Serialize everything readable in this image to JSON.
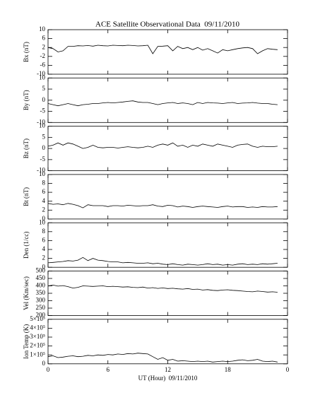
{
  "chart_data": [
    {
      "type": "line",
      "title": "ACE Satellite Observational Data  09/11/2010",
      "ylabel": "Bx (nT)",
      "color": "#000000",
      "x": [
        0,
        0.5,
        1,
        1.5,
        2,
        2.5,
        3,
        3.5,
        4,
        4.5,
        5,
        5.5,
        6,
        6.5,
        7,
        7.5,
        8,
        8.5,
        9,
        9.5,
        10,
        10.5,
        11,
        11.5,
        12,
        12.5,
        13,
        13.5,
        14,
        14.5,
        15,
        15.5,
        16,
        16.5,
        17,
        17.5,
        18,
        18.5,
        19,
        19.5,
        20,
        20.5,
        21,
        21.5,
        22,
        22.5,
        23
      ],
      "values": [
        2,
        1.5,
        0,
        0.5,
        2.5,
        2.5,
        2.8,
        2.7,
        2.9,
        2.6,
        3,
        2.8,
        2.7,
        3,
        2.9,
        2.8,
        3,
        2.9,
        2.7,
        2.8,
        3,
        -0.8,
        2.5,
        2.6,
        2.8,
        0.5,
        2.5,
        1.5,
        2,
        1,
        2,
        0.8,
        1.5,
        0.5,
        -0.5,
        1,
        0.5,
        1,
        1.5,
        1.8,
        2,
        1.5,
        -0.8,
        0.5,
        1.5,
        1.2,
        1
      ],
      "xlim": [
        0,
        24
      ],
      "ylim": [
        -10,
        10
      ],
      "yticks": [
        -10,
        -6,
        -2,
        2,
        6,
        10
      ]
    },
    {
      "type": "line",
      "ylabel": "By (nT)",
      "color": "#000000",
      "x": [
        0,
        0.5,
        1,
        1.5,
        2,
        2.5,
        3,
        3.5,
        4,
        4.5,
        5,
        5.5,
        6,
        6.5,
        7,
        7.5,
        8,
        8.5,
        9,
        9.5,
        10,
        10.5,
        11,
        11.5,
        12,
        12.5,
        13,
        13.5,
        14,
        14.5,
        15,
        15.5,
        16,
        16.5,
        17,
        17.5,
        18,
        18.5,
        19,
        19.5,
        20,
        20.5,
        21,
        21.5,
        22,
        22.5,
        23
      ],
      "values": [
        -1.5,
        -2,
        -2.5,
        -2,
        -1.5,
        -2,
        -2.5,
        -2,
        -1.8,
        -1.5,
        -1.5,
        -1.2,
        -1,
        -1.2,
        -1,
        -0.8,
        -0.5,
        -0.3,
        -0.8,
        -1,
        -1,
        -1.5,
        -2,
        -1.5,
        -1.2,
        -1,
        -1.5,
        -1.2,
        -1.5,
        -2,
        -1,
        -1.5,
        -1,
        -1.2,
        -1.3,
        -1.5,
        -1.2,
        -1,
        -1.5,
        -1.3,
        -1.2,
        -1,
        -1.3,
        -1.5,
        -1.5,
        -1.8,
        -2
      ],
      "xlim": [
        0,
        24
      ],
      "ylim": [
        -10,
        10
      ],
      "yticks": [
        -10,
        -5,
        0,
        5,
        10
      ]
    },
    {
      "type": "line",
      "ylabel": "Bz (nT)",
      "color": "#000000",
      "x": [
        0,
        0.5,
        1,
        1.5,
        2,
        2.5,
        3,
        3.5,
        4,
        4.5,
        5,
        5.5,
        6,
        6.5,
        7,
        7.5,
        8,
        8.5,
        9,
        9.5,
        10,
        10.5,
        11,
        11.5,
        12,
        12.5,
        13,
        13.5,
        14,
        14.5,
        15,
        15.5,
        16,
        16.5,
        17,
        17.5,
        18,
        18.5,
        19,
        19.5,
        20,
        20.5,
        21,
        21.5,
        22,
        22.5,
        23
      ],
      "values": [
        1,
        1.5,
        2.5,
        1.5,
        2.5,
        2,
        1,
        0,
        0.5,
        1.5,
        0.5,
        0.3,
        0.5,
        0.5,
        0.2,
        0.5,
        0.8,
        0.5,
        0.3,
        0.5,
        1,
        0.5,
        1.5,
        2,
        1.5,
        2.5,
        1,
        1.5,
        0.5,
        1.5,
        1,
        2,
        1.5,
        1,
        2,
        1.5,
        1,
        0.5,
        1.5,
        1.8,
        2,
        1,
        0.5,
        1,
        0.8,
        0.8,
        1
      ],
      "xlim": [
        0,
        24
      ],
      "ylim": [
        -10,
        10
      ],
      "yticks": [
        -10,
        -5,
        0,
        5,
        10
      ]
    },
    {
      "type": "line",
      "ylabel": "Bt (nT)",
      "color": "#000000",
      "x": [
        0,
        0.5,
        1,
        1.5,
        2,
        2.5,
        3,
        3.5,
        4,
        4.5,
        5,
        5.5,
        6,
        6.5,
        7,
        7.5,
        8,
        8.5,
        9,
        9.5,
        10,
        10.5,
        11,
        11.5,
        12,
        12.5,
        13,
        13.5,
        14,
        14.5,
        15,
        15.5,
        16,
        16.5,
        17,
        17.5,
        18,
        18.5,
        19,
        19.5,
        20,
        20.5,
        21,
        21.5,
        22,
        22.5,
        23
      ],
      "values": [
        3.5,
        3.3,
        3.4,
        3.2,
        3.5,
        3.3,
        3,
        2.5,
        3.2,
        3,
        3,
        3,
        2.8,
        3,
        3,
        2.9,
        3.1,
        3,
        2.9,
        3,
        3,
        3.2,
        2.9,
        2.8,
        3.1,
        3,
        2.7,
        2.9,
        2.8,
        2.6,
        2.8,
        2.9,
        2.8,
        2.7,
        2.6,
        2.8,
        2.9,
        2.7,
        2.8,
        2.8,
        2.6,
        2.7,
        2.6,
        2.8,
        2.7,
        2.7,
        2.8
      ],
      "xlim": [
        0,
        24
      ],
      "ylim": [
        0,
        10
      ],
      "yticks": [
        0,
        2,
        4,
        6,
        8,
        10
      ]
    },
    {
      "type": "line",
      "ylabel": "Den (1/cc)",
      "color": "#000000",
      "x": [
        0,
        0.5,
        1,
        1.5,
        2,
        2.5,
        3,
        3.5,
        4,
        4.5,
        5,
        5.5,
        6,
        6.5,
        7,
        7.5,
        8,
        8.5,
        9,
        9.5,
        10,
        10.5,
        11,
        11.5,
        12,
        12.5,
        13,
        13.5,
        14,
        14.5,
        15,
        15.5,
        16,
        16.5,
        17,
        17.5,
        18,
        18.5,
        19,
        19.5,
        20,
        20.5,
        21,
        21.5,
        22,
        22.5,
        23
      ],
      "values": [
        1,
        1.1,
        1.2,
        1.3,
        1.5,
        1.4,
        1.6,
        2.2,
        1.5,
        2,
        1.6,
        1.5,
        1.3,
        1.2,
        1.2,
        1,
        1.1,
        1,
        0.9,
        0.9,
        1,
        0.8,
        0.9,
        0.7,
        0.6,
        0.8,
        0.6,
        0.5,
        0.7,
        0.6,
        0.5,
        0.6,
        0.8,
        0.6,
        0.7,
        0.5,
        0.6,
        0.5,
        0.7,
        0.8,
        0.6,
        0.7,
        0.6,
        0.8,
        0.7,
        0.8,
        0.9
      ],
      "xlim": [
        0,
        24
      ],
      "ylim": [
        0,
        10
      ],
      "yticks": [
        0,
        2,
        4,
        6,
        8,
        10
      ]
    },
    {
      "type": "line",
      "ylabel": "Vel (Km/sec)",
      "color": "#000000",
      "x": [
        0,
        0.5,
        1,
        1.5,
        2,
        2.5,
        3,
        3.5,
        4,
        4.5,
        5,
        5.5,
        6,
        6.5,
        7,
        7.5,
        8,
        8.5,
        9,
        9.5,
        10,
        10.5,
        11,
        11.5,
        12,
        12.5,
        13,
        13.5,
        14,
        14.5,
        15,
        15.5,
        16,
        16.5,
        17,
        17.5,
        18,
        18.5,
        19,
        19.5,
        20,
        20.5,
        21,
        21.5,
        22,
        22.5,
        23
      ],
      "values": [
        400,
        405,
        398,
        402,
        395,
        385,
        390,
        400,
        398,
        396,
        398,
        400,
        395,
        397,
        395,
        392,
        394,
        390,
        388,
        392,
        385,
        388,
        383,
        386,
        382,
        384,
        380,
        378,
        382,
        376,
        378,
        372,
        375,
        370,
        368,
        372,
        374,
        370,
        368,
        365,
        362,
        360,
        365,
        362,
        358,
        360,
        357
      ],
      "xlim": [
        0,
        24
      ],
      "ylim": [
        200,
        500
      ],
      "yticks": [
        200,
        250,
        300,
        350,
        400,
        450,
        500
      ]
    },
    {
      "type": "line",
      "ylabel": "Ion Temp (K)",
      "xlabel": "UT (Hour)  09/11/2010",
      "color": "#000000",
      "x": [
        0,
        0.5,
        1,
        1.5,
        2,
        2.5,
        3,
        3.5,
        4,
        4.5,
        5,
        5.5,
        6,
        6.5,
        7,
        7.5,
        8,
        8.5,
        9,
        9.5,
        10,
        10.5,
        11,
        11.5,
        12,
        12.5,
        13,
        13.5,
        14,
        14.5,
        15,
        15.5,
        16,
        16.5,
        17,
        17.5,
        18,
        18.5,
        19,
        19.5,
        20,
        20.5,
        21,
        21.5,
        22,
        22.5,
        23
      ],
      "values": [
        80000,
        90000,
        70000,
        75000,
        85000,
        90000,
        80000,
        85000,
        95000,
        90000,
        100000,
        95000,
        105000,
        100000,
        110000,
        105000,
        115000,
        110000,
        120000,
        115000,
        110000,
        80000,
        50000,
        70000,
        40000,
        50000,
        30000,
        35000,
        30000,
        25000,
        30000,
        25000,
        30000,
        20000,
        25000,
        30000,
        25000,
        30000,
        40000,
        45000,
        35000,
        40000,
        50000,
        30000,
        25000,
        30000,
        20000
      ],
      "xlim": [
        0,
        24
      ],
      "xticks": [
        0,
        6,
        12,
        18,
        {
          "value": 24,
          "label": "0"
        }
      ],
      "ylim": [
        0,
        500000
      ],
      "yticks": [
        0,
        {
          "value": 100000,
          "label": "1×10⁵"
        },
        {
          "value": 200000,
          "label": "2×10⁵"
        },
        {
          "value": 300000,
          "label": "3×10⁵"
        },
        {
          "value": 400000,
          "label": "4×10⁵"
        },
        {
          "value": 500000,
          "label": "5×10⁵"
        }
      ]
    }
  ]
}
